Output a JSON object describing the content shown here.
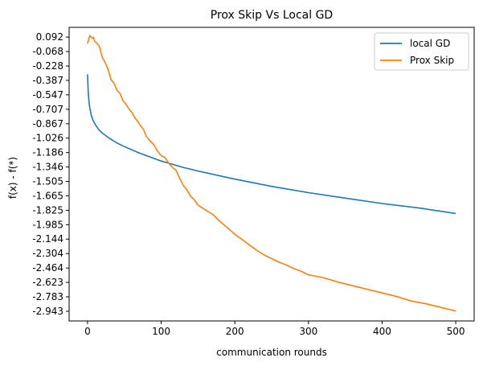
{
  "chart_data": {
    "type": "line",
    "title": "Prox Skip Vs Local GD",
    "xlabel": "communication rounds",
    "ylabel": "f(x) - f(*)",
    "xlim": [
      -25,
      525
    ],
    "ylim": [
      -3.05,
      0.2
    ],
    "x_ticks": [
      0,
      100,
      200,
      300,
      400,
      500
    ],
    "y_ticks": [
      "0.092",
      "-0.068",
      "-0.228",
      "-0.387",
      "-0.547",
      "-0.707",
      "-0.867",
      "-1.026",
      "-1.186",
      "-1.346",
      "-1.505",
      "-1.665",
      "-1.825",
      "-1.985",
      "-2.144",
      "-2.304",
      "-2.464",
      "-2.623",
      "-2.783",
      "-2.943"
    ],
    "grid": false,
    "legend_position": "top-right",
    "series": [
      {
        "name": "local GD",
        "color": "#1f77b4",
        "x": [
          0,
          1,
          2,
          3,
          4,
          5,
          7,
          10,
          15,
          20,
          30,
          40,
          50,
          70,
          100,
          130,
          150,
          200,
          250,
          300,
          350,
          400,
          450,
          500
        ],
        "y": [
          -0.32,
          -0.52,
          -0.62,
          -0.69,
          -0.73,
          -0.77,
          -0.82,
          -0.87,
          -0.93,
          -0.97,
          -1.03,
          -1.08,
          -1.12,
          -1.19,
          -1.28,
          -1.35,
          -1.39,
          -1.48,
          -1.56,
          -1.63,
          -1.69,
          -1.75,
          -1.8,
          -1.86
        ]
      },
      {
        "name": "Prox Skip",
        "color": "#ff7f0e",
        "x": [
          0,
          3,
          6,
          8,
          10,
          12,
          16,
          20,
          24,
          28,
          32,
          36,
          40,
          44,
          48,
          52,
          56,
          60,
          64,
          68,
          72,
          76,
          80,
          85,
          90,
          95,
          100,
          105,
          110,
          115,
          120,
          125,
          130,
          135,
          140,
          145,
          150,
          160,
          170,
          180,
          190,
          200,
          210,
          220,
          230,
          240,
          250,
          260,
          270,
          280,
          290,
          300,
          320,
          340,
          360,
          380,
          400,
          420,
          440,
          460,
          480,
          500
        ],
        "y": [
          0.02,
          0.11,
          0.08,
          0.09,
          0.04,
          0.03,
          -0.01,
          -0.13,
          -0.19,
          -0.27,
          -0.38,
          -0.42,
          -0.5,
          -0.53,
          -0.61,
          -0.65,
          -0.7,
          -0.74,
          -0.8,
          -0.84,
          -0.89,
          -0.93,
          -1.01,
          -1.06,
          -1.1,
          -1.17,
          -1.22,
          -1.24,
          -1.3,
          -1.35,
          -1.38,
          -1.47,
          -1.55,
          -1.6,
          -1.67,
          -1.71,
          -1.77,
          -1.82,
          -1.87,
          -1.95,
          -2.02,
          -2.09,
          -2.15,
          -2.21,
          -2.27,
          -2.32,
          -2.36,
          -2.4,
          -2.43,
          -2.47,
          -2.5,
          -2.54,
          -2.57,
          -2.62,
          -2.66,
          -2.7,
          -2.74,
          -2.78,
          -2.83,
          -2.86,
          -2.9,
          -2.94
        ]
      }
    ]
  }
}
